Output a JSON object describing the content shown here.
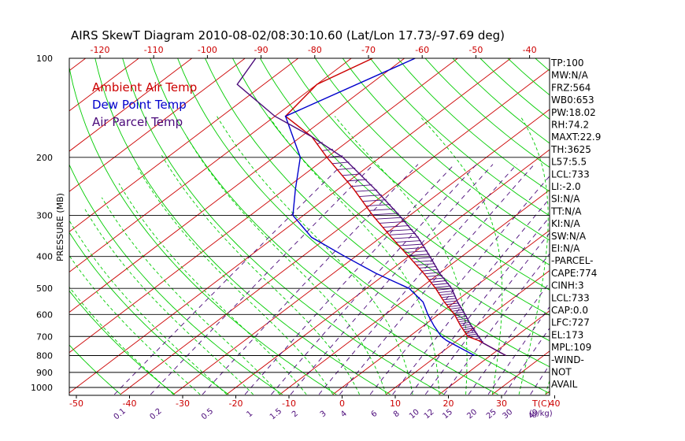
{
  "title": "AIRS SkewT Diagram 2010-08-02/08:30:10.60 (Lat/Lon 17.73/-97.69 deg)",
  "legend": [
    {
      "label": "Ambient Air Temp",
      "color": "#cc0000"
    },
    {
      "label": "Dew Point Temp",
      "color": "#0000cc"
    },
    {
      "label": "Air Parcel Temp",
      "color": "#4b0a7a"
    }
  ],
  "ylabel": "PRESSURE (MB)",
  "colors": {
    "temp": "#cc0000",
    "dewpoint": "#0000cc",
    "parcel": "#4b0a7a",
    "dry_adiabat": "#00cc00",
    "moist_adiabat": "#00cc00",
    "mixing_ratio": "#4b0a7a",
    "isotherm": "#cc0000",
    "isobar": "#000000"
  },
  "stats": [
    "TP:100",
    "MW:N/A",
    "FRZ:564",
    "WB0:653",
    "PW:18.02",
    "RH:74.2",
    "MAXT:22.9",
    "TH:3625",
    "L57:5.5",
    "LCL:733",
    "LI:-2.0",
    "SI:N/A",
    "TT:N/A",
    "KI:N/A",
    "SW:N/A",
    "EI:N/A",
    "-PARCEL-",
    "CAPE:774",
    "CINH:3",
    "LCL:733",
    "CAP:0.0",
    "LFC:727",
    "EL:173",
    "MPL:109",
    "-WIND-",
    "NOT",
    "AVAIL"
  ],
  "chart_data": {
    "type": "line",
    "skew_t": true,
    "pressure_axis": {
      "scale": "log",
      "range_mb": [
        1000,
        100
      ],
      "ticks": [
        100,
        200,
        300,
        400,
        500,
        600,
        700,
        800,
        900,
        1000
      ]
    },
    "bottom_temp_ticks": [
      -50,
      -40,
      -30,
      -20,
      -10,
      0,
      10,
      20,
      30,
      40
    ],
    "bottom_temp_unit": "T(C)",
    "top_temp_ticks": [
      -120,
      -110,
      -100,
      -90,
      -80,
      -70,
      -60,
      -50,
      -40
    ],
    "mixing_ratio_labels": [
      "0.1",
      "0.2",
      "0.5",
      "1",
      "1.5",
      "2",
      "3",
      "4",
      "6",
      "8",
      "10",
      "12",
      "15",
      "20",
      "25",
      "30",
      "40"
    ],
    "mixing_ratio_unit": "(g/kg)",
    "series": [
      {
        "name": "Ambient Air Temp",
        "color_key": "temp",
        "points": [
          {
            "p": 100,
            "t": -76
          },
          {
            "p": 120,
            "t": -80
          },
          {
            "p": 150,
            "t": -78
          },
          {
            "p": 173,
            "t": -68
          },
          {
            "p": 200,
            "t": -60
          },
          {
            "p": 250,
            "t": -47
          },
          {
            "p": 300,
            "t": -37
          },
          {
            "p": 350,
            "t": -28
          },
          {
            "p": 400,
            "t": -20
          },
          {
            "p": 450,
            "t": -13
          },
          {
            "p": 500,
            "t": -7
          },
          {
            "p": 550,
            "t": -2
          },
          {
            "p": 600,
            "t": 3
          },
          {
            "p": 650,
            "t": 7
          },
          {
            "p": 700,
            "t": 11
          },
          {
            "p": 720,
            "t": 14
          },
          {
            "p": 800,
            "t": 22.9
          }
        ]
      },
      {
        "name": "Dew Point Temp",
        "color_key": "dewpoint",
        "points": [
          {
            "p": 100,
            "t": -68
          },
          {
            "p": 150,
            "t": -78
          },
          {
            "p": 200,
            "t": -65
          },
          {
            "p": 250,
            "t": -58
          },
          {
            "p": 300,
            "t": -52
          },
          {
            "p": 350,
            "t": -43
          },
          {
            "p": 400,
            "t": -32
          },
          {
            "p": 450,
            "t": -22
          },
          {
            "p": 500,
            "t": -12
          },
          {
            "p": 550,
            "t": -6
          },
          {
            "p": 600,
            "t": -2
          },
          {
            "p": 650,
            "t": 2
          },
          {
            "p": 700,
            "t": 6
          },
          {
            "p": 720,
            "t": 8
          },
          {
            "p": 800,
            "t": 17
          }
        ]
      },
      {
        "name": "Air Parcel Temp",
        "color_key": "parcel",
        "points": [
          {
            "p": 100,
            "t": -98
          },
          {
            "p": 120,
            "t": -95
          },
          {
            "p": 150,
            "t": -80
          },
          {
            "p": 173,
            "t": -68
          },
          {
            "p": 200,
            "t": -57
          },
          {
            "p": 250,
            "t": -43
          },
          {
            "p": 300,
            "t": -32
          },
          {
            "p": 350,
            "t": -23
          },
          {
            "p": 400,
            "t": -16
          },
          {
            "p": 450,
            "t": -10
          },
          {
            "p": 500,
            "t": -4
          },
          {
            "p": 550,
            "t": 0.5
          },
          {
            "p": 600,
            "t": 5
          },
          {
            "p": 650,
            "t": 9
          },
          {
            "p": 700,
            "t": 13
          },
          {
            "p": 733,
            "t": 15.5
          },
          {
            "p": 800,
            "t": 22.9
          }
        ]
      }
    ]
  }
}
